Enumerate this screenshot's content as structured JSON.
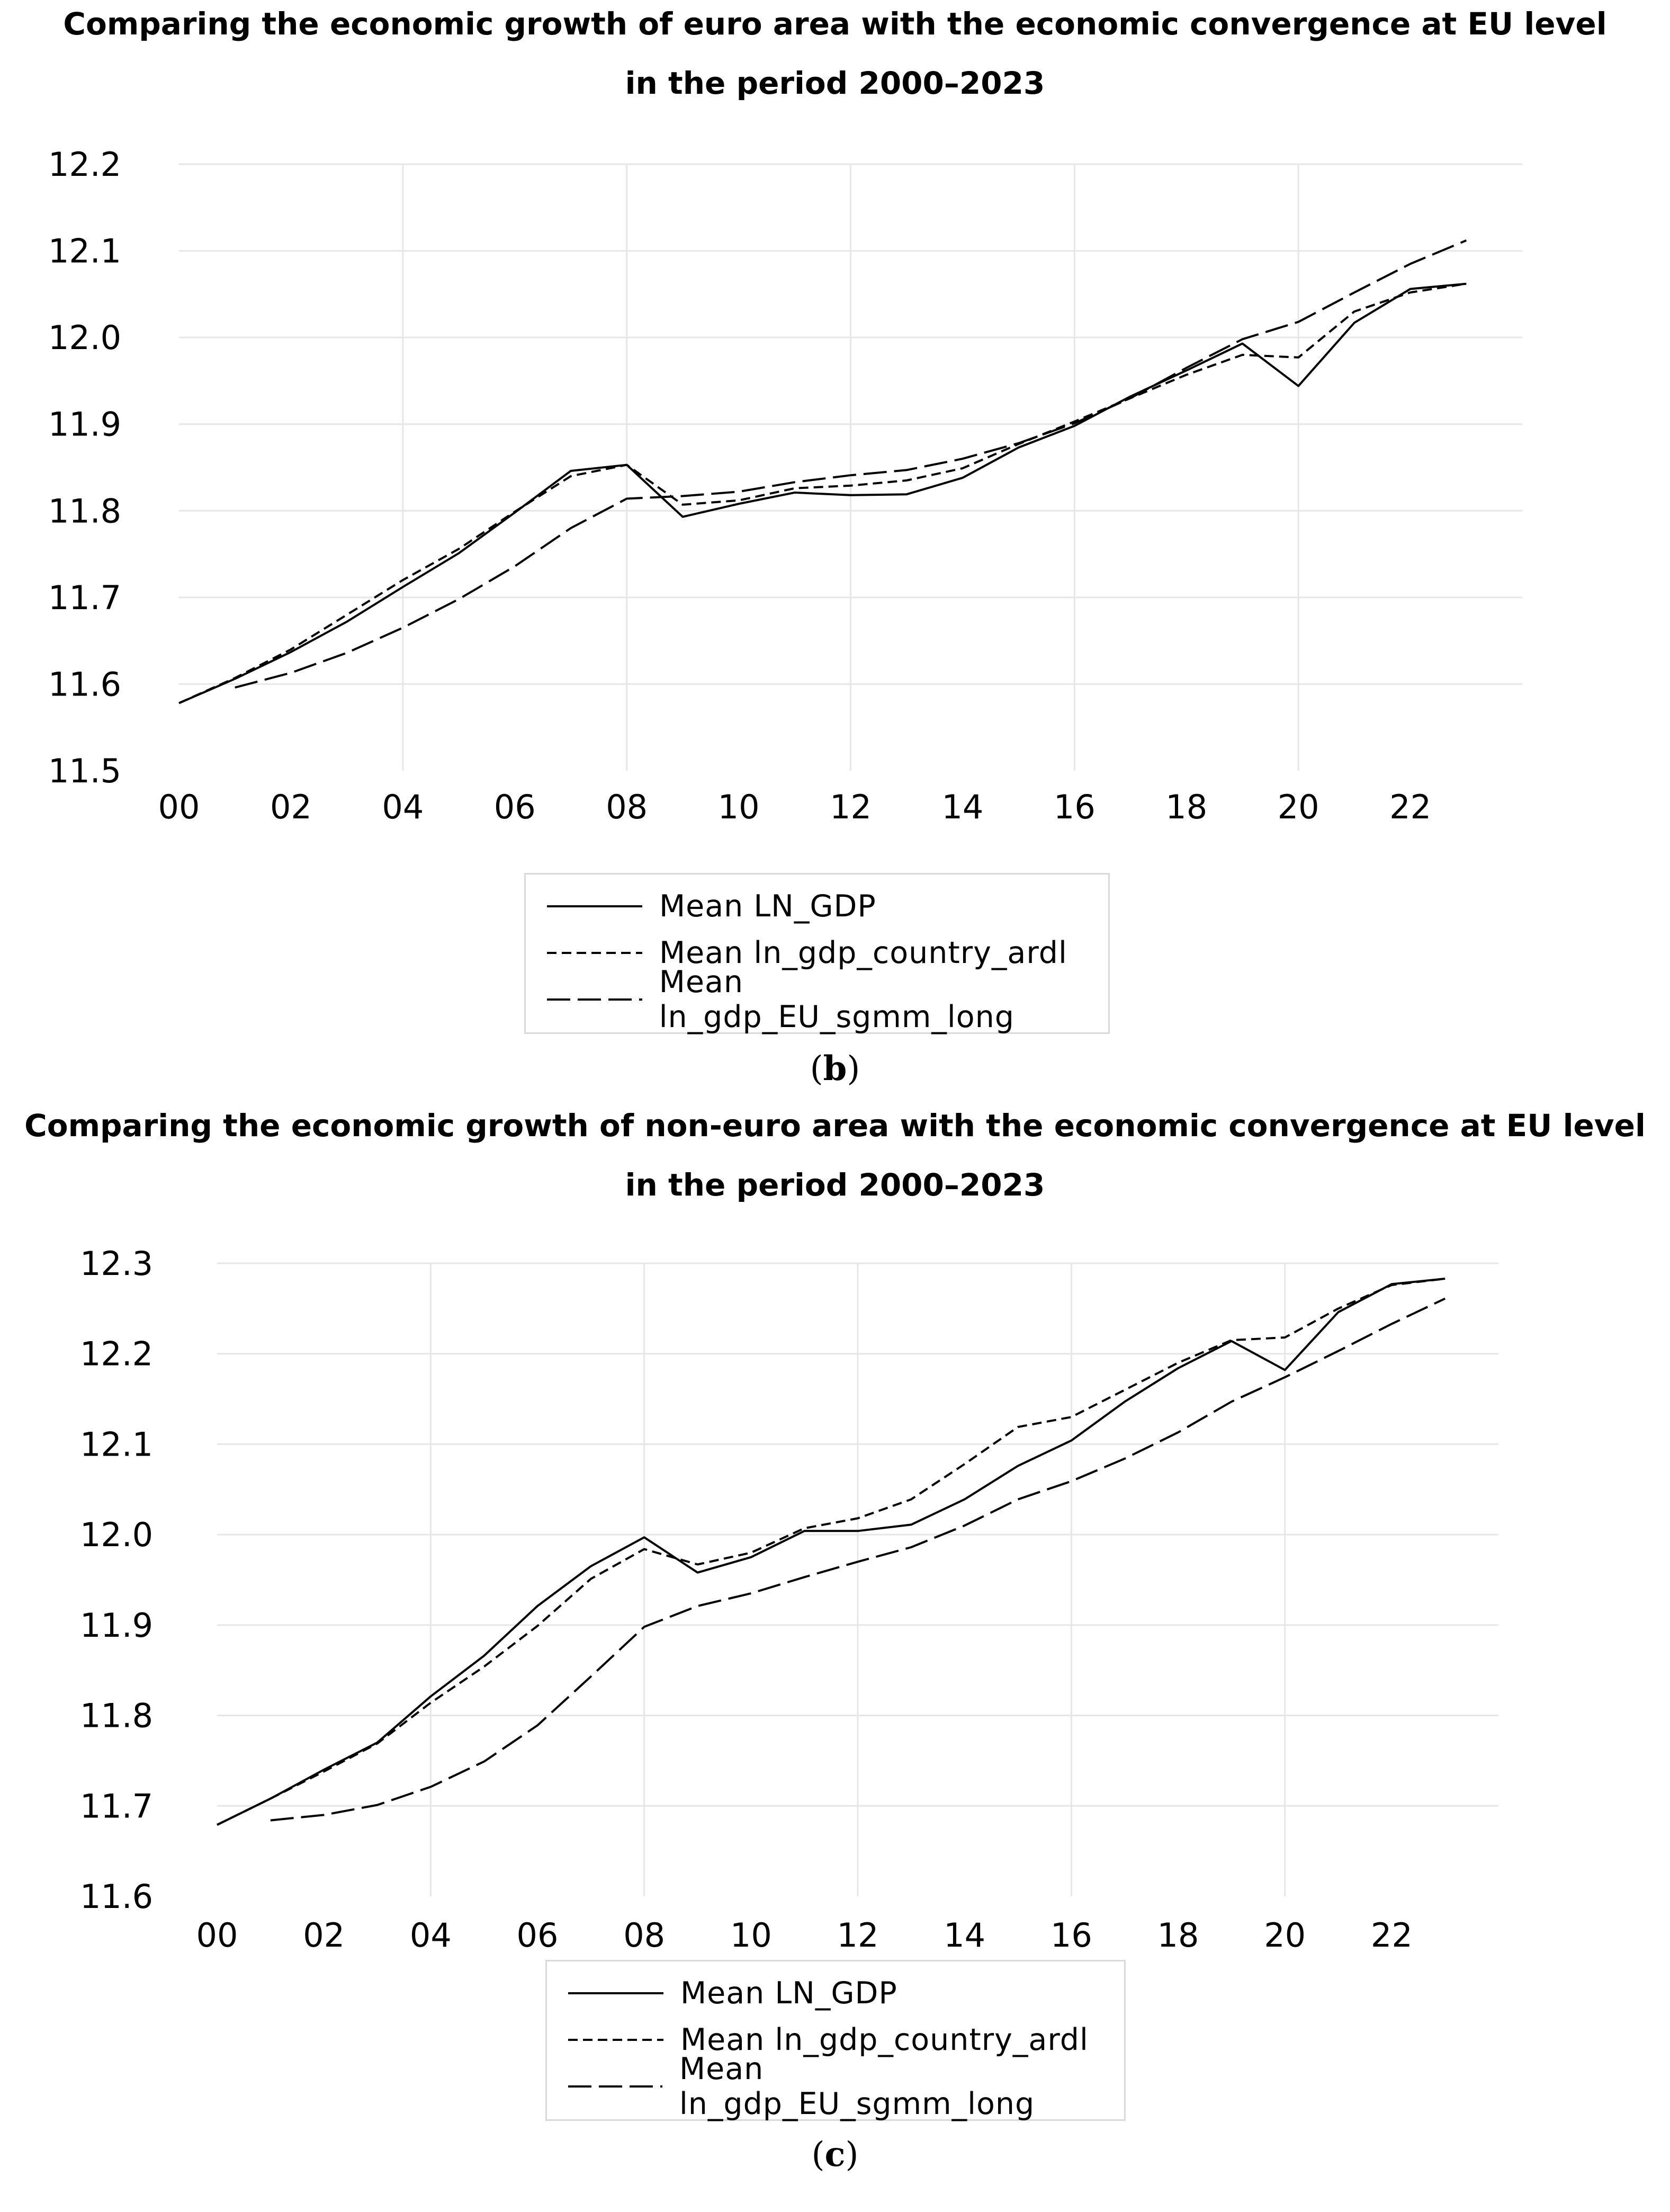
{
  "chart_data": [
    {
      "type": "line",
      "title_line1": "Comparing the economic growth of euro area with the economic convergence at EU level",
      "title_line2": "in the period 2000–2023",
      "x": [
        0,
        1,
        2,
        3,
        4,
        5,
        6,
        7,
        8,
        9,
        10,
        11,
        12,
        13,
        14,
        15,
        16,
        17,
        18,
        19,
        20,
        21,
        22,
        23
      ],
      "xticks": [
        "00",
        "02",
        "04",
        "06",
        "08",
        "10",
        "12",
        "14",
        "16",
        "18",
        "20",
        "22"
      ],
      "yticks": [
        "11.5",
        "11.6",
        "11.7",
        "11.8",
        "11.9",
        "12.0",
        "12.1",
        "12.2"
      ],
      "ylim": [
        11.5,
        12.2
      ],
      "xlim": [
        0,
        24
      ],
      "grid": true,
      "series": [
        {
          "name": "Mean LN_GDP",
          "style": "solid",
          "x": [
            0,
            1,
            2,
            3,
            4,
            5,
            6,
            7,
            8,
            9,
            10,
            11,
            12,
            13,
            14,
            15,
            16,
            17,
            18,
            19,
            20,
            21,
            22,
            23
          ],
          "values": [
            11.578,
            11.606,
            11.637,
            11.672,
            11.712,
            11.751,
            11.798,
            11.846,
            11.853,
            11.793,
            11.808,
            11.821,
            11.818,
            11.819,
            11.838,
            11.873,
            11.898,
            11.932,
            11.962,
            11.993,
            11.944,
            12.017,
            12.056,
            12.062
          ]
        },
        {
          "name": "Mean ln_gdp_country_ardl",
          "style": "dash-short",
          "x": [
            0,
            1,
            2,
            3,
            4,
            5,
            6,
            7,
            8,
            9,
            10,
            11,
            12,
            13,
            14,
            15,
            16,
            17,
            18,
            19,
            20,
            21,
            22,
            23
          ],
          "values": [
            11.578,
            11.607,
            11.64,
            11.68,
            11.72,
            11.756,
            11.799,
            11.84,
            11.853,
            11.807,
            11.812,
            11.826,
            11.829,
            11.835,
            11.849,
            11.877,
            11.903,
            11.93,
            11.957,
            11.98,
            11.977,
            12.03,
            12.052,
            12.062
          ]
        },
        {
          "name": "Mean ln_gdp_EU_sgmm_long",
          "style": "dash-long",
          "x": [
            1,
            2,
            3,
            4,
            5,
            6,
            7,
            8,
            9,
            10,
            11,
            12,
            13,
            14,
            15,
            16,
            17,
            18,
            19,
            20,
            21,
            22,
            23
          ],
          "values": [
            11.596,
            11.613,
            11.636,
            11.665,
            11.698,
            11.736,
            11.78,
            11.814,
            11.817,
            11.822,
            11.833,
            11.841,
            11.847,
            11.86,
            11.878,
            11.901,
            11.93,
            11.965,
            11.998,
            12.018,
            12.052,
            12.085,
            12.112
          ]
        }
      ],
      "caption": "b"
    },
    {
      "type": "line",
      "title_line1": "Comparing the economic growth of non-euro area with the economic convergence at EU level",
      "title_line2": "in the period 2000–2023",
      "x": [
        0,
        1,
        2,
        3,
        4,
        5,
        6,
        7,
        8,
        9,
        10,
        11,
        12,
        13,
        14,
        15,
        16,
        17,
        18,
        19,
        20,
        21,
        22,
        23
      ],
      "xticks": [
        "00",
        "02",
        "04",
        "06",
        "08",
        "10",
        "12",
        "14",
        "16",
        "18",
        "20",
        "22"
      ],
      "yticks": [
        "11.6",
        "11.7",
        "11.8",
        "11.9",
        "12.0",
        "12.1",
        "12.2",
        "12.3"
      ],
      "ylim": [
        11.6,
        12.3
      ],
      "xlim": [
        0,
        24
      ],
      "grid": true,
      "series": [
        {
          "name": "Mean LN_GDP",
          "style": "solid",
          "x": [
            0,
            1,
            2,
            3,
            4,
            5,
            6,
            7,
            8,
            9,
            10,
            11,
            12,
            13,
            14,
            15,
            16,
            17,
            18,
            19,
            20,
            21,
            22,
            23
          ],
          "values": [
            11.679,
            11.708,
            11.74,
            11.77,
            11.821,
            11.866,
            11.921,
            11.965,
            11.997,
            11.958,
            11.975,
            12.004,
            12.004,
            12.011,
            12.039,
            12.076,
            12.104,
            12.147,
            12.184,
            12.214,
            12.182,
            12.246,
            12.277,
            12.283
          ]
        },
        {
          "name": "Mean ln_gdp_country_ardl",
          "style": "dash-short",
          "x": [
            0,
            1,
            2,
            3,
            4,
            5,
            6,
            7,
            8,
            9,
            10,
            11,
            12,
            13,
            14,
            15,
            16,
            17,
            18,
            19,
            20,
            21,
            22,
            23
          ],
          "values": [
            11.679,
            11.708,
            11.738,
            11.769,
            11.814,
            11.854,
            11.899,
            11.951,
            11.984,
            11.967,
            11.98,
            12.007,
            12.018,
            12.039,
            12.078,
            12.119,
            12.13,
            12.16,
            12.19,
            12.215,
            12.218,
            12.25,
            12.276,
            12.283
          ]
        },
        {
          "name": "Mean ln_gdp_EU_sgmm_long",
          "style": "dash-long",
          "x": [
            1,
            2,
            3,
            4,
            5,
            6,
            7,
            8,
            9,
            10,
            11,
            12,
            13,
            14,
            15,
            16,
            17,
            18,
            19,
            20,
            21,
            22,
            23
          ],
          "values": [
            11.684,
            11.69,
            11.701,
            11.721,
            11.749,
            11.789,
            11.843,
            11.898,
            11.921,
            11.935,
            11.953,
            11.97,
            11.986,
            12.01,
            12.039,
            12.059,
            12.084,
            12.113,
            12.147,
            12.174,
            12.203,
            12.233,
            12.261
          ]
        }
      ],
      "caption": "c"
    }
  ],
  "legend": {
    "items": [
      "Mean LN_GDP",
      "Mean ln_gdp_country_ardl",
      "Mean ln_gdp_EU_sgmm_long"
    ]
  },
  "captions": {
    "b": {
      "open": "(",
      "letter": "b",
      "close": ")"
    },
    "c": {
      "open": "(",
      "letter": "c",
      "close": ")"
    }
  }
}
